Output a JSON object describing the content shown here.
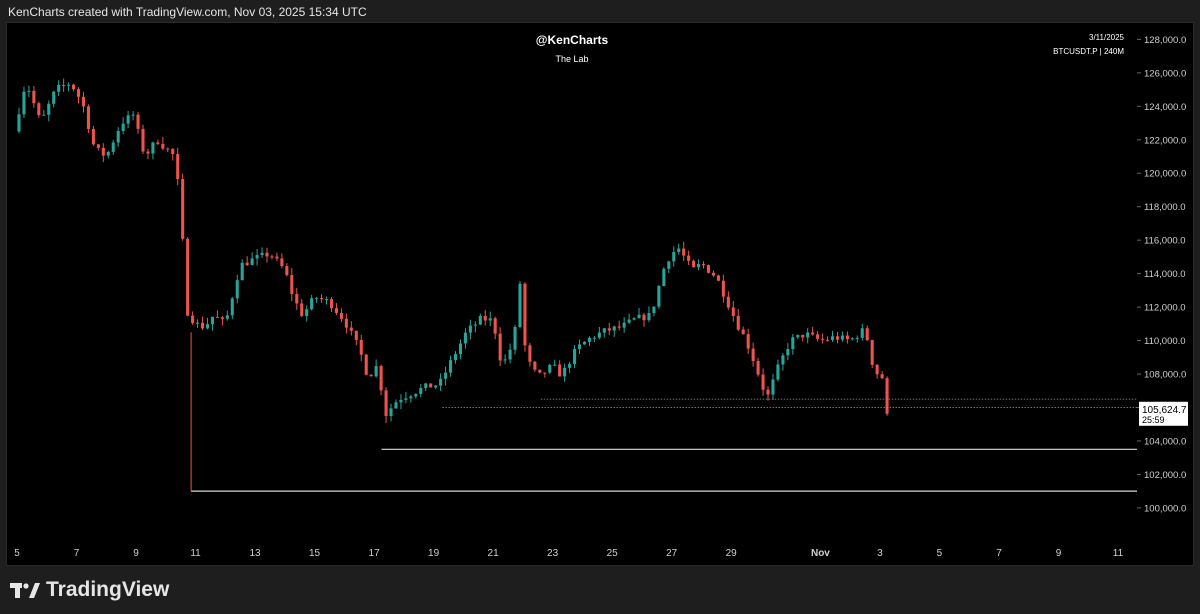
{
  "header": {
    "text": "KenCharts created with TradingView.com, Nov 03, 2025 15:34 UTC"
  },
  "chart_overlay": {
    "author": "@KenCharts",
    "subtitle": "The Lab",
    "date": "3/11/2025",
    "symbol": "BTCUSDT.P | 240M"
  },
  "footer": {
    "brand": "TradingView"
  },
  "colors": {
    "up": "#26a69a",
    "down": "#ef5350",
    "background": "#000000",
    "level": "#d9d9d9"
  },
  "chart_data": {
    "type": "candlestick",
    "title": "@KenCharts",
    "ylim": [
      98200,
      128800
    ],
    "y_ticks": [
      100000,
      102000,
      104000,
      106000,
      108000,
      110000,
      112000,
      114000,
      116000,
      118000,
      120000,
      122000,
      124000,
      126000,
      128000
    ],
    "y_tick_labels": [
      "100,000.0",
      "102,000.0",
      "104,000.0",
      "106,000.0",
      "108,000.0",
      "110,000.0",
      "112,000.0",
      "114,000.0",
      "116,000.0",
      "118,000.0",
      "120,000.0",
      "122,000.0",
      "124,000.0",
      "126,000.0",
      "128,000.0"
    ],
    "x_range_days": [
      5.0,
      12.2
    ],
    "x_ticks": [
      {
        "day": 5,
        "label": "5"
      },
      {
        "day": 7,
        "label": "7"
      },
      {
        "day": 9,
        "label": "9"
      },
      {
        "day": 11,
        "label": "11"
      },
      {
        "day": 13,
        "label": "13"
      },
      {
        "day": 15,
        "label": "15"
      },
      {
        "day": 17,
        "label": "17"
      },
      {
        "day": 19,
        "label": "19"
      },
      {
        "day": 21,
        "label": "21"
      },
      {
        "day": 23,
        "label": "23"
      },
      {
        "day": 25,
        "label": "25"
      },
      {
        "day": 27,
        "label": "27"
      },
      {
        "day": 29,
        "label": "29"
      },
      {
        "day": 32,
        "label": "Nov"
      },
      {
        "day": 34,
        "label": "3"
      },
      {
        "day": 36,
        "label": "5"
      },
      {
        "day": 38,
        "label": "7"
      },
      {
        "day": 40,
        "label": "9"
      },
      {
        "day": 42,
        "label": "11"
      }
    ],
    "candle_interval_days": 0.1667,
    "price_path": [
      [
        4.9,
        122500
      ],
      [
        5.3,
        125500
      ],
      [
        5.8,
        123000
      ],
      [
        6.3,
        125000
      ],
      [
        6.8,
        125400
      ],
      [
        7.2,
        124200
      ],
      [
        7.6,
        121500
      ],
      [
        8.0,
        121000
      ],
      [
        8.5,
        123000
      ],
      [
        8.9,
        123500
      ],
      [
        9.3,
        121000
      ],
      [
        9.7,
        122000
      ],
      [
        10.0,
        121500
      ],
      [
        10.3,
        121000
      ],
      [
        10.5,
        118000
      ],
      [
        10.7,
        111800
      ],
      [
        11.0,
        111000
      ],
      [
        11.3,
        110800
      ],
      [
        11.6,
        111500
      ],
      [
        12.0,
        111000
      ],
      [
        12.5,
        114500
      ],
      [
        13.0,
        114900
      ],
      [
        13.5,
        115200
      ],
      [
        14.0,
        114200
      ],
      [
        14.3,
        112500
      ],
      [
        14.6,
        111500
      ],
      [
        15.0,
        112600
      ],
      [
        15.5,
        112300
      ],
      [
        16.0,
        111200
      ],
      [
        16.5,
        109500
      ],
      [
        16.8,
        107800
      ],
      [
        17.1,
        108500
      ],
      [
        17.4,
        105600
      ],
      [
        17.8,
        106500
      ],
      [
        18.2,
        106800
      ],
      [
        18.7,
        107200
      ],
      [
        19.2,
        107400
      ],
      [
        19.6,
        108800
      ],
      [
        20.1,
        110500
      ],
      [
        20.6,
        111300
      ],
      [
        21.0,
        111200
      ],
      [
        21.3,
        108400
      ],
      [
        21.7,
        110000
      ],
      [
        21.9,
        113500
      ],
      [
        22.1,
        109000
      ],
      [
        22.5,
        107800
      ],
      [
        23.0,
        108500
      ],
      [
        23.3,
        107900
      ],
      [
        23.8,
        109500
      ],
      [
        24.3,
        110200
      ],
      [
        24.8,
        110600
      ],
      [
        25.3,
        110800
      ],
      [
        25.8,
        111300
      ],
      [
        26.3,
        111500
      ],
      [
        26.8,
        114700
      ],
      [
        27.2,
        115600
      ],
      [
        27.7,
        114200
      ],
      [
        28.0,
        114600
      ],
      [
        28.5,
        113800
      ],
      [
        28.8,
        112600
      ],
      [
        29.2,
        111000
      ],
      [
        29.5,
        110000
      ],
      [
        29.8,
        108600
      ],
      [
        30.2,
        106500
      ],
      [
        30.6,
        108500
      ],
      [
        31.0,
        110000
      ],
      [
        31.5,
        110400
      ],
      [
        32.0,
        110000
      ],
      [
        32.5,
        110200
      ],
      [
        33.0,
        110000
      ],
      [
        33.5,
        110700
      ],
      [
        33.8,
        108200
      ],
      [
        34.2,
        107600
      ],
      [
        34.4,
        105700
      ]
    ],
    "last_price": {
      "value": 105624.7,
      "label": "105,624.7",
      "countdown": "25:59"
    },
    "horizontal_levels": [
      {
        "value": 101000,
        "from_day": 10.85,
        "style": "solid"
      },
      {
        "value": 103500,
        "from_day": 17.25,
        "style": "solid"
      },
      {
        "value": 106000,
        "from_day": 19.3,
        "style": "dotted"
      },
      {
        "value": 106500,
        "from_day": 22.6,
        "style": "dotted"
      }
    ],
    "vertical_connector": {
      "day": 10.85,
      "from": 110500,
      "to": 101000
    }
  }
}
